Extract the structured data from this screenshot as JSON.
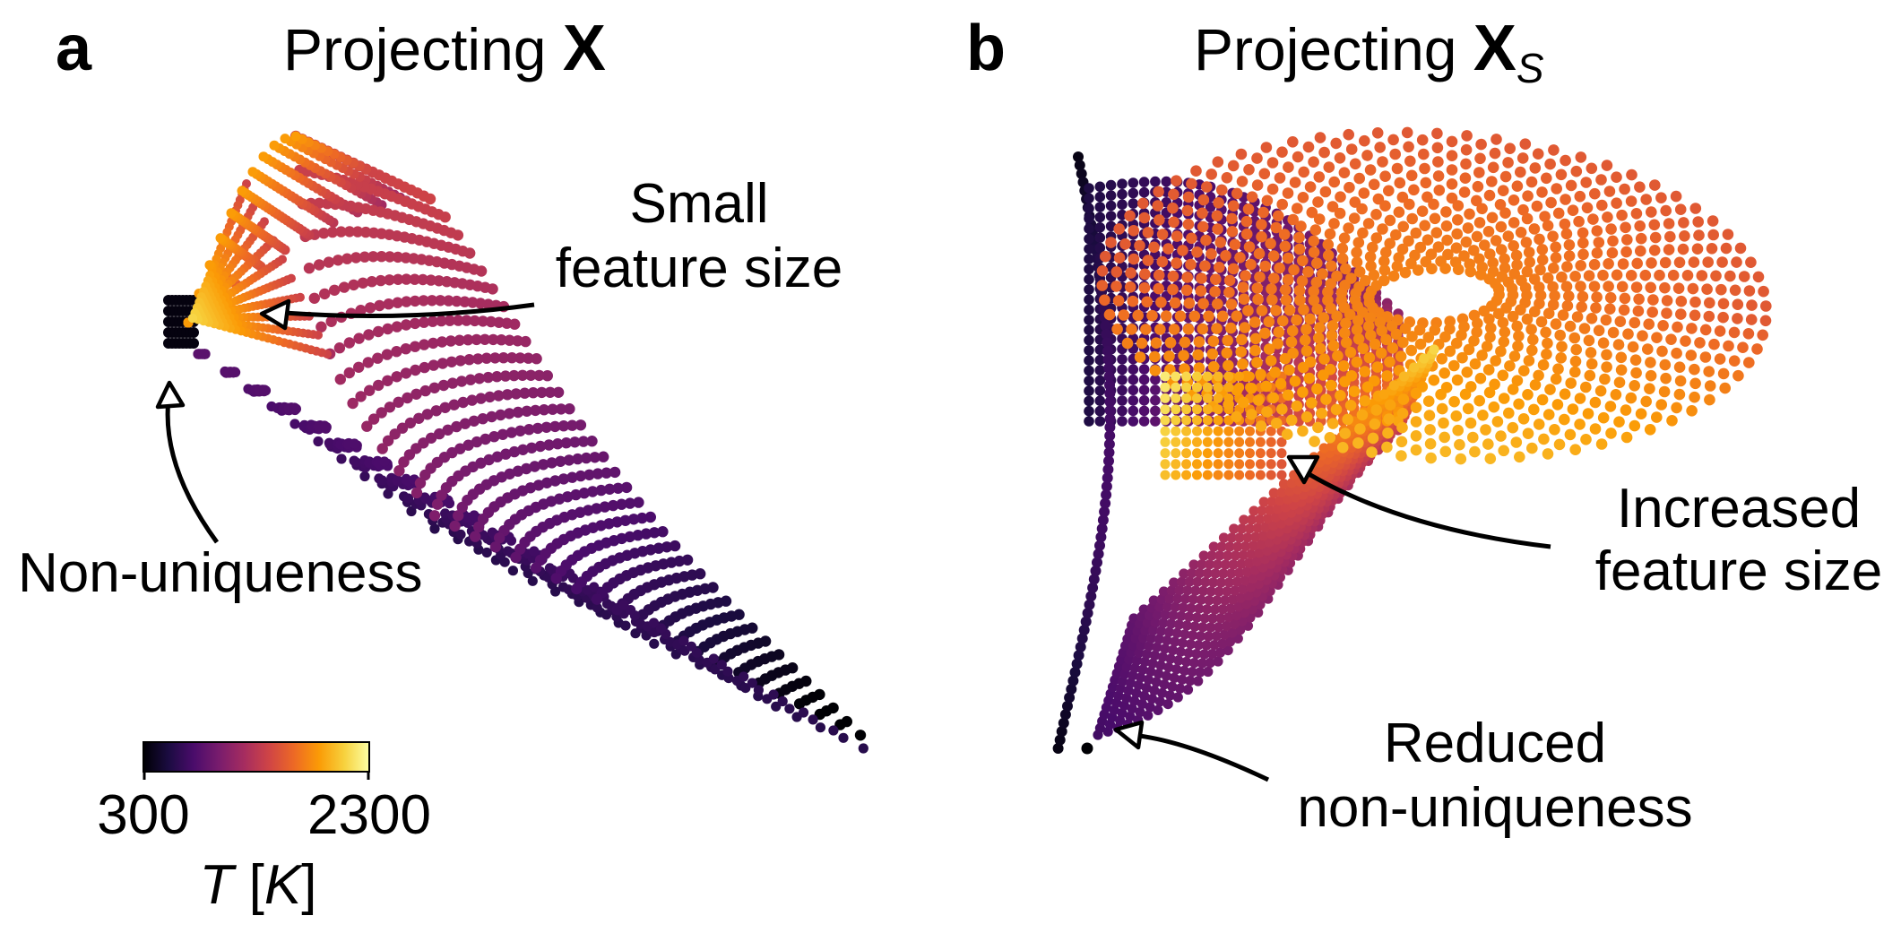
{
  "chart_data": [
    {
      "type": "scatter",
      "panel_label": "a",
      "title_prefix": "Projecting ",
      "title_symbol": "X",
      "title_subscript": "",
      "annotations": [
        {
          "id": "small",
          "lines": [
            "Small",
            "feature size"
          ]
        },
        {
          "id": "nonuniq",
          "lines": [
            "Non-uniqueness"
          ]
        }
      ],
      "series": [
        {
          "color_by": "T",
          "colormap": "inferno",
          "point_count_description": "dense 2D projection of state vectors"
        }
      ]
    },
    {
      "type": "scatter",
      "panel_label": "b",
      "title_prefix": "Projecting ",
      "title_symbol": "X",
      "title_subscript": "S",
      "annotations": [
        {
          "id": "increased",
          "lines": [
            "Increased",
            "feature size"
          ]
        },
        {
          "id": "reduced",
          "lines": [
            "Reduced",
            "non-uniqueness"
          ]
        }
      ],
      "series": [
        {
          "color_by": "T",
          "colormap": "inferno"
        }
      ]
    }
  ],
  "colorbar": {
    "min": 300,
    "max": 2300,
    "tick_labels": [
      "300",
      "2300"
    ],
    "label_var": "T",
    "label_unit_open": " [",
    "label_unit": "K",
    "label_unit_close": "]",
    "colormap": "inferno",
    "colors": [
      "#000004",
      "#1b0c41",
      "#4a0c6b",
      "#781c6d",
      "#a52c60",
      "#cf4446",
      "#ed6925",
      "#fb9b06",
      "#f7d13d",
      "#fcffa4"
    ]
  }
}
